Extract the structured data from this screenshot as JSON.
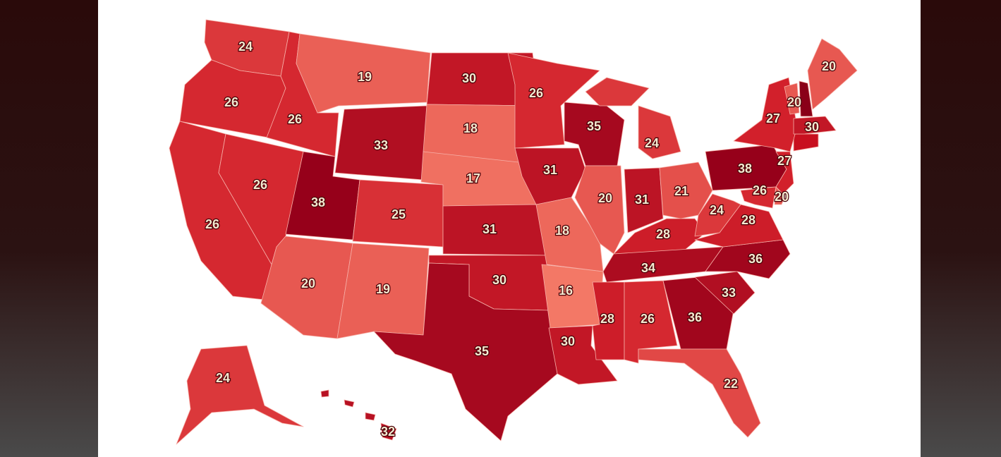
{
  "map": {
    "type": "choropleth",
    "values": [
      24,
      26,
      26,
      26,
      26,
      19,
      33,
      38,
      25,
      20,
      19,
      30,
      18,
      17,
      31,
      30,
      35,
      26,
      31,
      18,
      16,
      30,
      35,
      20,
      24,
      31,
      21,
      28,
      34,
      28,
      26,
      36,
      22,
      33,
      36,
      28,
      24,
      38,
      27,
      20,
      20,
      30,
      27,
      26,
      20,
      24,
      32
    ],
    "colors": [
      "#f37866",
      "#d2202b",
      "#96001a"
    ]
  }
}
